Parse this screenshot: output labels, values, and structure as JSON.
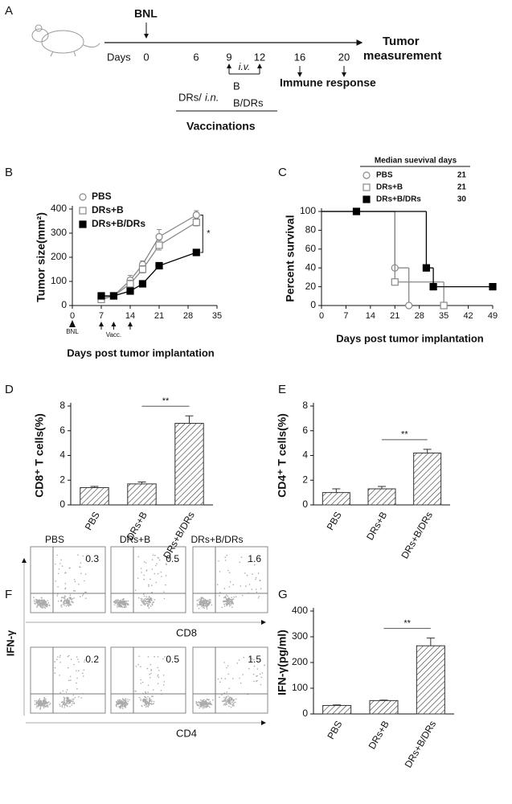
{
  "timeline": {
    "panel_label": "A",
    "start": "BNL",
    "days_label": "Days",
    "days": [
      "0",
      "6",
      "9",
      "12",
      "16",
      "20"
    ],
    "end": [
      "Tumor",
      "measurement"
    ],
    "route_iv": "i.v.",
    "b": "B",
    "immune": "Immune response",
    "drs": "DRs/",
    "route_in": "i.n.",
    "bdrs": "B/DRs",
    "vaccinations": "Vaccinations"
  },
  "flow": {
    "panel_label": "F",
    "y_label": "IFN-γ",
    "columns": [
      "PBS",
      "DRs+B",
      "DRs+B/DRs"
    ],
    "rows": [
      {
        "x_label": "CD8",
        "percents": [
          0.3,
          0.5,
          1.6
        ]
      },
      {
        "x_label": "CD4",
        "percents": [
          0.2,
          0.5,
          1.5
        ]
      }
    ]
  },
  "chart_data": [
    {
      "type": "line",
      "panel_label": "B",
      "y_label": "Tumor size(mm²)",
      "x_label": "Days post tumor implantation",
      "xlim": [
        0,
        35
      ],
      "xticks": [
        0,
        7,
        14,
        21,
        28,
        35
      ],
      "ylim": [
        0,
        400
      ],
      "yticks": [
        0,
        100,
        200,
        300,
        400
      ],
      "legend": "upper left",
      "annotation": "*",
      "implant_label": "BNL",
      "implant_day": 0,
      "vaccination_label": "Vacc.",
      "vaccination_days": [
        7,
        10,
        14
      ],
      "series": [
        {
          "name": "PBS",
          "color": "#888888",
          "marker": "circle-open",
          "x": [
            7,
            10,
            14,
            17,
            21,
            30
          ],
          "values": [
            35,
            40,
            105,
            170,
            285,
            375
          ],
          "errors": [
            8,
            6,
            20,
            15,
            30,
            18
          ]
        },
        {
          "name": "DRs+B",
          "color": "#888888",
          "marker": "square-open",
          "x": [
            7,
            10,
            14,
            17,
            21,
            30
          ],
          "values": [
            25,
            40,
            90,
            150,
            250,
            345
          ],
          "errors": [
            6,
            5,
            15,
            15,
            20,
            15
          ]
        },
        {
          "name": "DRs+B/DRs",
          "color": "#000000",
          "marker": "square-filled",
          "x": [
            7,
            10,
            14,
            17,
            21,
            30
          ],
          "values": [
            40,
            40,
            60,
            90,
            165,
            220
          ],
          "errors": [
            5,
            5,
            8,
            8,
            12,
            8
          ]
        }
      ]
    },
    {
      "type": "step",
      "panel_label": "C",
      "y_label": "Percent survival",
      "x_label": "Days post tumor implantation",
      "legend_title": "Median suevival days",
      "xlim": [
        0,
        49
      ],
      "xticks": [
        0,
        7,
        14,
        21,
        28,
        35,
        42,
        49
      ],
      "ylim": [
        0,
        100
      ],
      "yticks": [
        0,
        20,
        40,
        60,
        80,
        100
      ],
      "series": [
        {
          "name": "PBS",
          "median": 21,
          "color": "#888888",
          "marker": "circle-open",
          "x": [
            0,
            21,
            25
          ],
          "values": [
            100,
            40,
            0
          ]
        },
        {
          "name": "DRs+B",
          "median": 21,
          "color": "#888888",
          "marker": "square-open",
          "x": [
            0,
            21,
            35
          ],
          "values": [
            100,
            25,
            0
          ]
        },
        {
          "name": "DRs+B/DRs",
          "median": 30,
          "color": "#000000",
          "marker": "square-filled",
          "x": [
            0,
            10,
            30,
            32,
            49
          ],
          "values": [
            100,
            100,
            40,
            20,
            20
          ]
        }
      ]
    },
    {
      "type": "bar",
      "panel_label": "D",
      "y_label": "CD8⁺ T cells(%)",
      "categories": [
        "PBS",
        "DRs+B",
        "DRs+B/DRs"
      ],
      "values": [
        1.4,
        1.7,
        6.6
      ],
      "errors": [
        0.1,
        0.15,
        0.6
      ],
      "color": "#333333",
      "hatch": true,
      "ylim": [
        0,
        8
      ],
      "yticks": [
        0,
        2,
        4,
        6,
        8
      ],
      "significance": "**"
    },
    {
      "type": "bar",
      "panel_label": "E",
      "y_label": "CD4⁺ T cells(%)",
      "categories": [
        "PBS",
        "DRs+B",
        "DRs+B/DRs"
      ],
      "values": [
        1.0,
        1.3,
        4.2
      ],
      "errors": [
        0.3,
        0.2,
        0.3
      ],
      "color": "#333333",
      "hatch": true,
      "ylim": [
        0,
        8
      ],
      "yticks": [
        0,
        2,
        4,
        6,
        8
      ],
      "significance": "**"
    },
    {
      "type": "bar",
      "panel_label": "G",
      "y_label": "IFN-γ(pg/ml)",
      "categories": [
        "PBS",
        "DRs+B",
        "DRs+B/DRs"
      ],
      "values": [
        33,
        52,
        265
      ],
      "errors": [
        2,
        2,
        30
      ],
      "color": "#333333",
      "hatch": true,
      "ylim": [
        0,
        400
      ],
      "yticks": [
        0,
        100,
        200,
        300,
        400
      ],
      "significance": "**"
    }
  ]
}
